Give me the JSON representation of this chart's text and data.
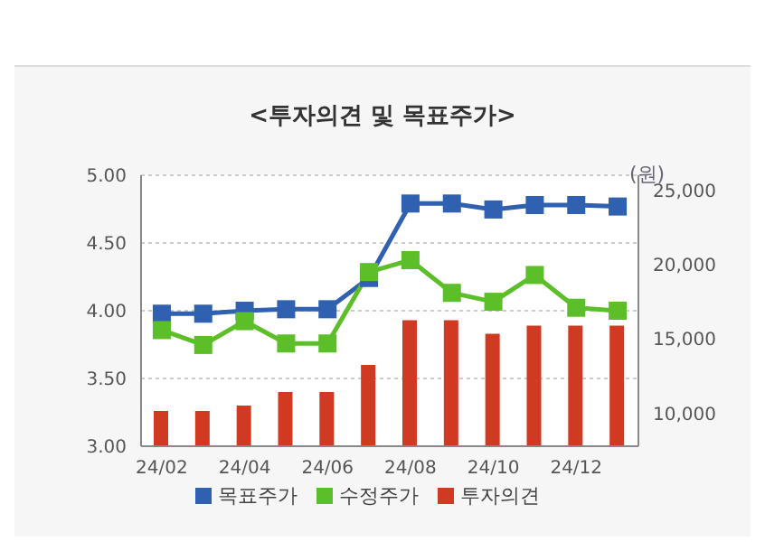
{
  "chart_data": {
    "type": "bar",
    "title": "<투자의견 및 목표주가>",
    "y2label": "(원)",
    "categories": [
      "24/02",
      null,
      "24/04",
      null,
      "24/06",
      null,
      "24/08",
      null,
      "24/10",
      null,
      "24/12",
      null
    ],
    "series": [
      {
        "name": "투자의견",
        "color": "#d03a22",
        "values": [
          3.26,
          3.26,
          3.3,
          3.4,
          3.4,
          3.6,
          3.93,
          3.93,
          3.83,
          3.89,
          3.89,
          3.89
        ]
      },
      {
        "name": "목표주가",
        "type": "line",
        "axis": "y2",
        "color": "#3060b0",
        "values": [
          16700,
          16700,
          16900,
          17000,
          17000,
          19100,
          24100,
          24100,
          23700,
          24000,
          24000,
          23900
        ]
      },
      {
        "name": "수정주가",
        "type": "line",
        "axis": "y2",
        "color": "#5cbf2a",
        "values": [
          15600,
          14600,
          16200,
          14700,
          14700,
          19500,
          20300,
          18100,
          17500,
          19300,
          17100,
          16900
        ]
      }
    ],
    "ylim": [
      3,
      5
    ],
    "yticks": [
      {
        "value": 3,
        "label": "3.00"
      },
      {
        "value": 3.5,
        "label": "3.50"
      },
      {
        "value": 4,
        "label": "4.00"
      },
      {
        "value": 4.5,
        "label": "4.50"
      },
      {
        "value": 5,
        "label": "5.00"
      }
    ],
    "y2lim": [
      7800,
      26000
    ],
    "y2ticks": [
      {
        "value": 10000,
        "label": "10,000"
      },
      {
        "value": 15000,
        "label": "15,000"
      },
      {
        "value": 20000,
        "label": "20,000"
      },
      {
        "value": 25000,
        "label": "25,000"
      }
    ],
    "grid": "y",
    "legend": "bottom",
    "marker": "square"
  }
}
